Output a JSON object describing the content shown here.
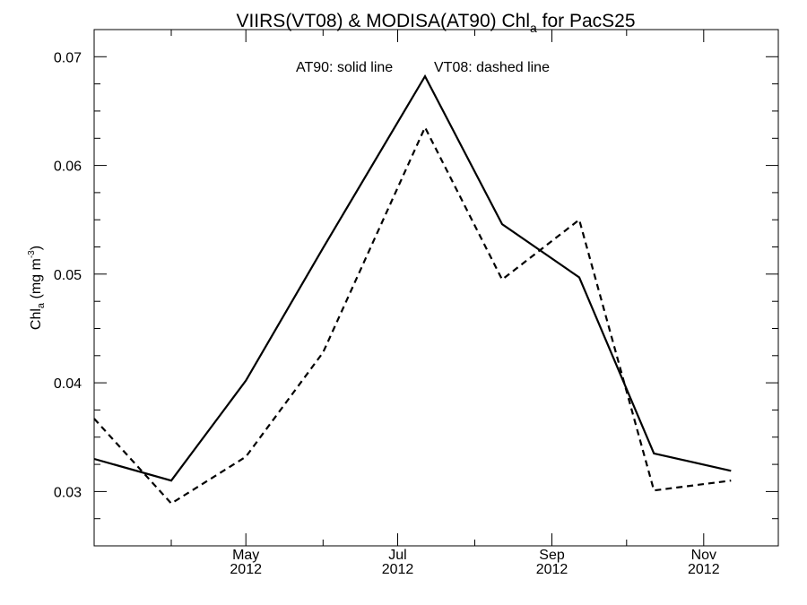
{
  "chart_data": {
    "type": "line",
    "title": {
      "prefix": "VIIRS(VT08) & MODISA(AT90)  Chl",
      "subscript": "a",
      "suffix": " for PacS25"
    },
    "ylabel": {
      "prefix": "Chl",
      "subscript": "a",
      "middle": " (mg m",
      "superscript": "-3",
      "suffix": ")"
    },
    "xlim": [
      "2012-03-01",
      "2012-12-01"
    ],
    "ylim": [
      0.025,
      0.0725
    ],
    "y_ticks": [
      0.03,
      0.04,
      0.05,
      0.06,
      0.07
    ],
    "y_tick_labels": [
      "0.03",
      "0.04",
      "0.05",
      "0.06",
      "0.07"
    ],
    "y_minor_step": 0.0025,
    "x_major_ticks": [
      {
        "date": "2012-05-01",
        "label": [
          "May",
          "2012"
        ]
      },
      {
        "date": "2012-07-01",
        "label": [
          "Jul",
          "2012"
        ]
      },
      {
        "date": "2012-09-01",
        "label": [
          "Sep",
          "2012"
        ]
      },
      {
        "date": "2012-11-01",
        "label": [
          "Nov",
          "2012"
        ]
      }
    ],
    "x_minor_ticks": [
      "2012-04-01",
      "2012-06-01",
      "2012-08-01",
      "2012-10-01"
    ],
    "annotations": [
      "AT90: solid line",
      "VT08: dashed line"
    ],
    "series": [
      {
        "name": "AT90",
        "style": "solid",
        "x": [
          "2012-03-01",
          "2012-04-01",
          "2012-05-01",
          "2012-06-01",
          "2012-07-12",
          "2012-08-12",
          "2012-09-12",
          "2012-10-12",
          "2012-11-12"
        ],
        "y": [
          0.033,
          0.031,
          0.0402,
          0.0524,
          0.0682,
          0.0546,
          0.0497,
          0.0335,
          0.0319
        ]
      },
      {
        "name": "VT08",
        "style": "dashed",
        "x": [
          "2012-03-01",
          "2012-04-01",
          "2012-05-01",
          "2012-06-01",
          "2012-07-12",
          "2012-08-12",
          "2012-09-12",
          "2012-10-12",
          "2012-11-12"
        ],
        "y": [
          0.0367,
          0.0289,
          0.0332,
          0.0428,
          0.0635,
          0.0495,
          0.055,
          0.0301,
          0.031
        ]
      }
    ],
    "grid": false,
    "colors": {
      "line": "#000000",
      "background": "#ffffff"
    }
  }
}
